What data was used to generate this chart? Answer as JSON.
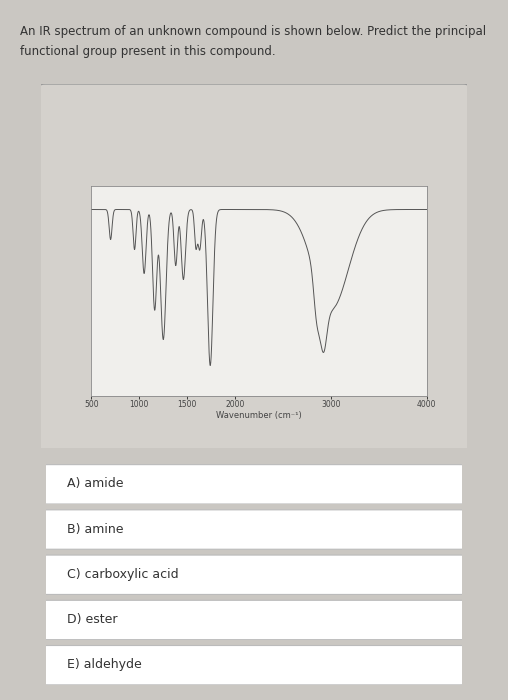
{
  "title_line1": "An IR spectrum of an unknown compound is shown below. Predict the principal",
  "title_line2": "functional group present in this compound.",
  "bg_color": "#cac7c2",
  "spectrum_panel_bg": "#d4d1cc",
  "spectrum_bg": "#f0efec",
  "choices": [
    "A) amide",
    "B) amine",
    "C) carboxylic acid",
    "D) ester",
    "E) aldehyde"
  ],
  "xlabel": "Wavenumber (cm⁻¹)",
  "x_ticks": [
    4000,
    3000,
    2000,
    1500,
    1000,
    500
  ],
  "xlim_left": 4000,
  "xlim_right": 500,
  "ylim": [
    0.0,
    1.05
  ],
  "line_color": "#555555",
  "text_color": "#333333",
  "tick_fontsize": 5.5,
  "label_fontsize": 6.0
}
